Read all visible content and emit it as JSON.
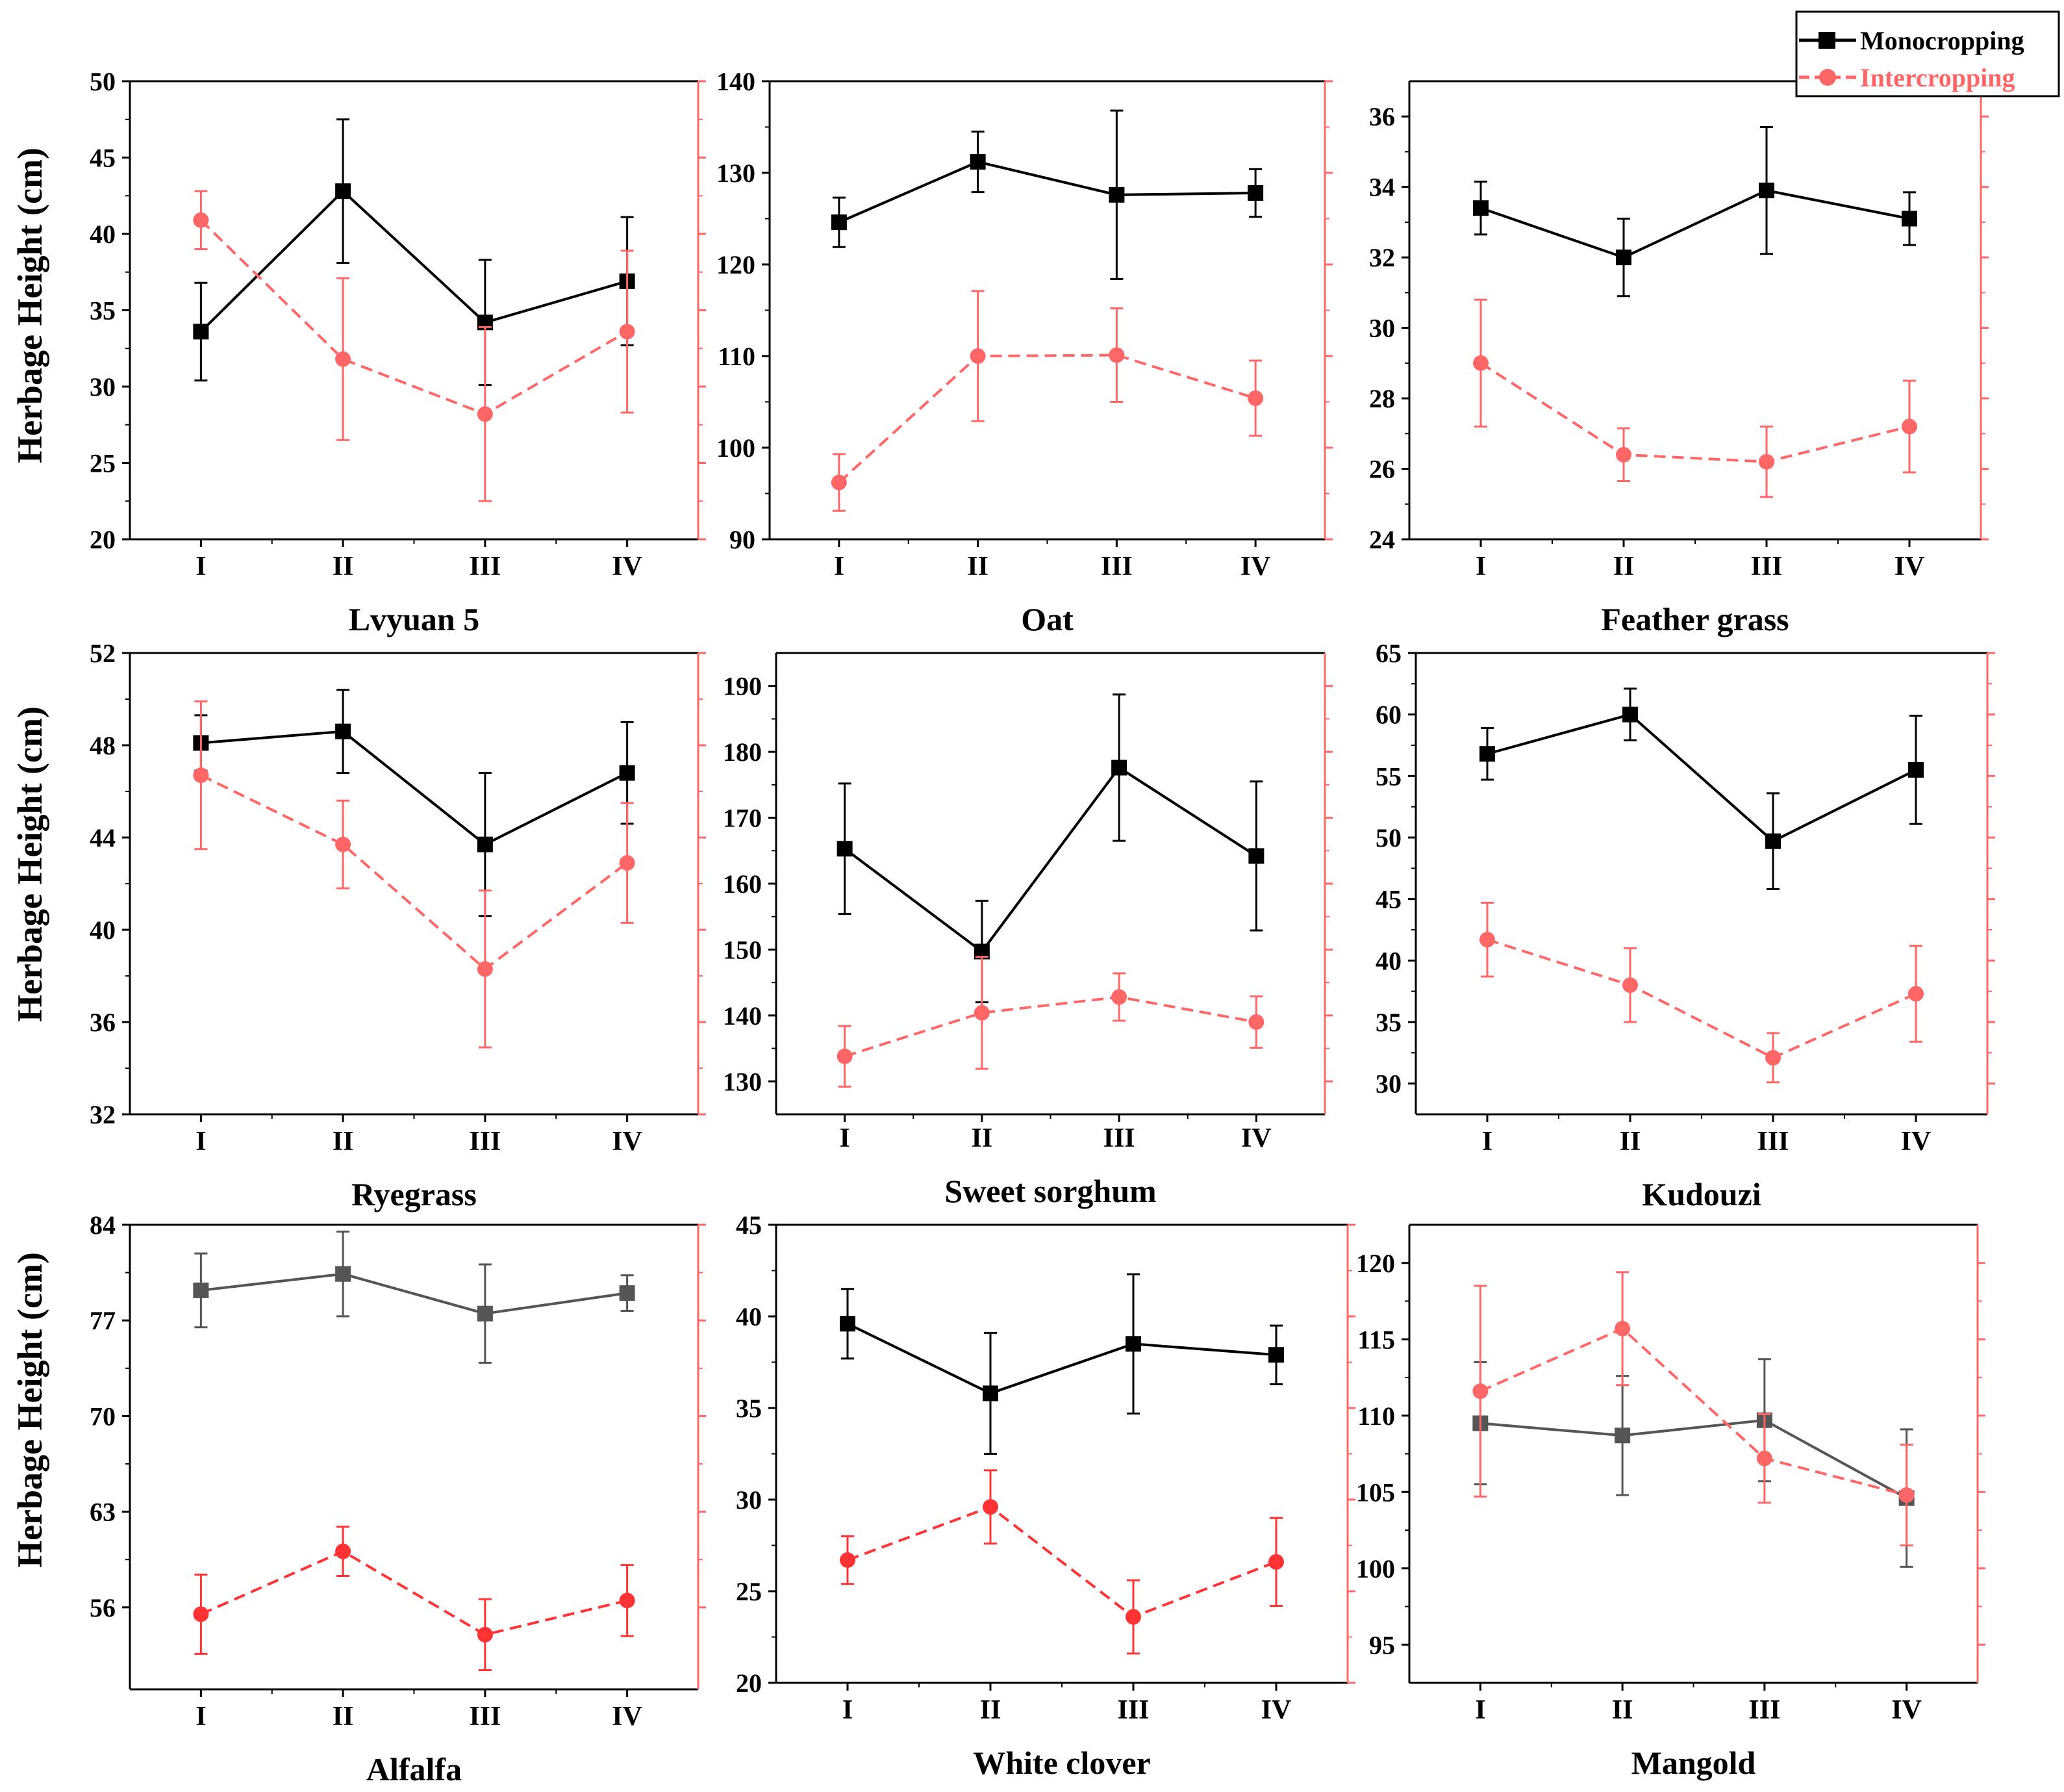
{
  "colors": {
    "monocropping": "#000000",
    "intercropping": "#ff6666",
    "alfalfa_mono": "#555555",
    "alfalfa_inter": "#ff3333",
    "white_clover_inter": "#ff3333",
    "axis_right": "#ff6666"
  },
  "legend": {
    "monocropping": "Monocropping",
    "intercropping": "Intercropping"
  },
  "ylabel": "Herbage Height (cm)",
  "chart_data": [
    {
      "type": "line",
      "title": "Lvyuan 5",
      "categories": [
        "I",
        "II",
        "III",
        "IV"
      ],
      "ylim": [
        20,
        50
      ],
      "yticks": [
        20,
        25,
        30,
        35,
        40,
        45,
        50
      ],
      "series": [
        {
          "name": "Monocropping",
          "values": [
            33.6,
            42.8,
            34.2,
            36.9
          ],
          "errors": [
            3.2,
            4.7,
            4.1,
            4.2
          ]
        },
        {
          "name": "Intercropping",
          "values": [
            40.9,
            31.8,
            28.2,
            33.6
          ],
          "errors": [
            1.9,
            5.3,
            5.7,
            5.3
          ]
        }
      ]
    },
    {
      "type": "line",
      "title": "Oat",
      "categories": [
        "I",
        "II",
        "III",
        "IV"
      ],
      "ylim": [
        90,
        140
      ],
      "yticks": [
        90,
        100,
        110,
        120,
        130,
        140
      ],
      "series": [
        {
          "name": "Monocropping",
          "values": [
            124.6,
            131.2,
            127.6,
            127.8
          ],
          "errors": [
            2.7,
            3.3,
            9.2,
            2.6
          ]
        },
        {
          "name": "Intercropping",
          "values": [
            96.2,
            110.0,
            110.1,
            105.4
          ],
          "errors": [
            3.1,
            7.1,
            5.1,
            4.1
          ]
        }
      ]
    },
    {
      "type": "line",
      "title": "Feather grass",
      "categories": [
        "I",
        "II",
        "III",
        "IV"
      ],
      "ylim": [
        24,
        37
      ],
      "yticks": [
        24,
        26,
        28,
        30,
        32,
        34,
        36
      ],
      "series": [
        {
          "name": "Monocropping",
          "values": [
            33.4,
            32.0,
            33.9,
            33.1
          ],
          "errors": [
            0.75,
            1.1,
            1.8,
            0.75
          ]
        },
        {
          "name": "Intercropping",
          "values": [
            29.0,
            26.4,
            26.2,
            27.2
          ],
          "errors": [
            1.8,
            0.75,
            1.0,
            1.3
          ]
        }
      ]
    },
    {
      "type": "line",
      "title": "Ryegrass",
      "categories": [
        "I",
        "II",
        "III",
        "IV"
      ],
      "ylim": [
        32,
        52
      ],
      "yticks": [
        32,
        36,
        40,
        44,
        48,
        52
      ],
      "series": [
        {
          "name": "Monocropping",
          "values": [
            48.1,
            48.6,
            43.7,
            46.8
          ],
          "errors": [
            1.2,
            1.8,
            3.1,
            2.2
          ]
        },
        {
          "name": "Intercropping",
          "values": [
            46.7,
            43.7,
            38.3,
            42.9
          ],
          "errors": [
            3.2,
            1.9,
            3.4,
            2.6
          ]
        }
      ]
    },
    {
      "type": "line",
      "title": "Sweet sorghum",
      "categories": [
        "I",
        "II",
        "III",
        "IV"
      ],
      "ylim": [
        125,
        195
      ],
      "yticks": [
        130,
        140,
        150,
        160,
        170,
        180,
        190
      ],
      "series": [
        {
          "name": "Monocropping",
          "values": [
            165.3,
            149.7,
            177.6,
            164.2
          ],
          "errors": [
            9.9,
            7.7,
            11.1,
            11.3
          ]
        },
        {
          "name": "Intercropping",
          "values": [
            133.8,
            140.4,
            142.8,
            139.0
          ],
          "errors": [
            4.6,
            8.5,
            3.6,
            3.9
          ]
        }
      ]
    },
    {
      "type": "line",
      "title": "Kudouzi",
      "categories": [
        "I",
        "II",
        "III",
        "IV"
      ],
      "ylim": [
        27.5,
        65
      ],
      "yticks": [
        30,
        35,
        40,
        45,
        50,
        55,
        60,
        65
      ],
      "series": [
        {
          "name": "Monocropping",
          "values": [
            56.8,
            60.0,
            49.7,
            55.5
          ],
          "errors": [
            2.1,
            2.1,
            3.9,
            4.4
          ]
        },
        {
          "name": "Intercropping",
          "values": [
            41.7,
            38.0,
            32.1,
            37.3
          ],
          "errors": [
            3.0,
            3.0,
            2.0,
            3.9
          ]
        }
      ]
    },
    {
      "type": "line",
      "title": "Alfalfa",
      "categories": [
        "I",
        "II",
        "III",
        "IV"
      ],
      "ylim": [
        50,
        84
      ],
      "yticks": [
        56,
        63,
        70,
        77,
        84
      ],
      "series": [
        {
          "name": "Monocropping",
          "values": [
            79.2,
            80.4,
            77.5,
            79.0
          ],
          "errors": [
            2.7,
            3.1,
            3.6,
            1.3
          ]
        },
        {
          "name": "Intercropping",
          "values": [
            55.5,
            60.1,
            54.0,
            56.5
          ],
          "errors": [
            2.9,
            1.8,
            2.6,
            2.6
          ]
        }
      ]
    },
    {
      "type": "line",
      "title": "White clover",
      "categories": [
        "I",
        "II",
        "III",
        "IV"
      ],
      "ylim": [
        20,
        45
      ],
      "yticks": [
        20,
        25,
        30,
        35,
        40,
        45
      ],
      "series": [
        {
          "name": "Monocropping",
          "values": [
            39.6,
            35.8,
            38.5,
            37.9
          ],
          "errors": [
            1.9,
            3.3,
            3.8,
            1.6
          ]
        },
        {
          "name": "Intercropping",
          "values": [
            26.7,
            29.6,
            23.6,
            26.6
          ],
          "errors": [
            1.3,
            2.0,
            2.0,
            2.4
          ]
        }
      ]
    },
    {
      "type": "line",
      "title": "Mangold",
      "categories": [
        "I",
        "II",
        "III",
        "IV"
      ],
      "ylim": [
        92.5,
        122.5
      ],
      "yticks": [
        95,
        100,
        105,
        110,
        115,
        120
      ],
      "series": [
        {
          "name": "Monocropping",
          "values": [
            109.5,
            108.7,
            109.7,
            104.6
          ],
          "errors": [
            4.0,
            3.9,
            4.0,
            4.5
          ]
        },
        {
          "name": "Intercropping",
          "values": [
            111.6,
            115.7,
            107.2,
            104.8
          ],
          "errors": [
            6.9,
            3.7,
            2.9,
            3.3
          ]
        }
      ]
    }
  ]
}
